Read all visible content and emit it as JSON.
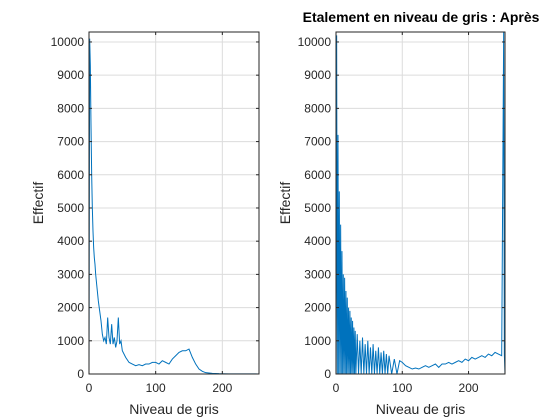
{
  "chart_data": [
    {
      "type": "line",
      "title": "",
      "xlabel": "Niveau de gris",
      "ylabel": "Effectif",
      "xlim": [
        0,
        255
      ],
      "ylim": [
        0,
        10300
      ],
      "xticks": [
        0,
        100,
        200
      ],
      "yticks": [
        0,
        1000,
        2000,
        3000,
        4000,
        5000,
        6000,
        7000,
        8000,
        9000,
        10000
      ],
      "grid": true,
      "series": [
        {
          "color": "#0072bd",
          "x": [
            0,
            1,
            2,
            3,
            4,
            5,
            6,
            7,
            8,
            9,
            10,
            12,
            14,
            16,
            18,
            20,
            22,
            24,
            26,
            28,
            30,
            32,
            34,
            36,
            38,
            40,
            42,
            44,
            46,
            48,
            50,
            55,
            60,
            65,
            70,
            75,
            80,
            85,
            90,
            95,
            100,
            105,
            110,
            115,
            120,
            125,
            130,
            135,
            140,
            145,
            150,
            155,
            160,
            165,
            170,
            175,
            180,
            185,
            190,
            195,
            200,
            210,
            220,
            230,
            240,
            250,
            255
          ],
          "y": [
            0,
            10100,
            9300,
            7500,
            6000,
            5000,
            4300,
            3800,
            3500,
            3300,
            3000,
            2600,
            2200,
            1900,
            1600,
            1200,
            1000,
            1100,
            900,
            1700,
            1100,
            900,
            1500,
            900,
            1100,
            800,
            1000,
            1700,
            900,
            1000,
            700,
            500,
            350,
            300,
            250,
            280,
            250,
            300,
            300,
            350,
            350,
            300,
            400,
            350,
            300,
            450,
            550,
            650,
            700,
            700,
            750,
            500,
            300,
            150,
            80,
            40,
            30,
            20,
            15,
            10,
            8,
            5,
            3,
            2,
            2,
            2,
            0
          ]
        }
      ]
    },
    {
      "type": "line",
      "title": "Etalement en niveau de gris : Après",
      "xlabel": "Niveau de gris",
      "ylabel": "Effectif",
      "xlim": [
        0,
        255
      ],
      "ylim": [
        0,
        10300
      ],
      "xticks": [
        0,
        100,
        200
      ],
      "yticks": [
        0,
        1000,
        2000,
        3000,
        4000,
        5000,
        6000,
        7000,
        8000,
        9000,
        10000
      ],
      "grid": true,
      "series": [
        {
          "color": "#0072bd",
          "x": [
            0,
            1,
            2,
            3,
            4,
            5,
            6,
            7,
            8,
            9,
            10,
            11,
            12,
            13,
            14,
            15,
            16,
            17,
            18,
            19,
            20,
            21,
            22,
            23,
            24,
            25,
            26,
            27,
            28,
            29,
            30,
            32,
            34,
            36,
            38,
            40,
            42,
            44,
            46,
            48,
            50,
            52,
            54,
            56,
            58,
            60,
            62,
            64,
            66,
            68,
            70,
            72,
            74,
            76,
            78,
            80,
            84,
            88,
            92,
            96,
            100,
            105,
            110,
            115,
            120,
            125,
            130,
            135,
            140,
            145,
            150,
            155,
            160,
            165,
            170,
            175,
            180,
            185,
            190,
            195,
            200,
            205,
            210,
            215,
            220,
            225,
            230,
            235,
            240,
            245,
            250,
            253,
            254,
            255
          ],
          "y": [
            0,
            10200,
            0,
            7200,
            0,
            5500,
            0,
            4500,
            0,
            3700,
            0,
            3000,
            0,
            2900,
            0,
            2500,
            0,
            2300,
            0,
            2000,
            0,
            1900,
            0,
            1700,
            0,
            1600,
            0,
            1400,
            0,
            1300,
            0,
            1200,
            0,
            1000,
            0,
            1100,
            0,
            900,
            0,
            1000,
            0,
            800,
            0,
            900,
            0,
            700,
            0,
            800,
            0,
            650,
            0,
            700,
            0,
            600,
            0,
            550,
            0,
            450,
            0,
            400,
            350,
            250,
            200,
            150,
            180,
            150,
            200,
            250,
            200,
            250,
            300,
            200,
            300,
            300,
            350,
            300,
            350,
            400,
            350,
            450,
            400,
            500,
            450,
            500,
            550,
            500,
            600,
            550,
            650,
            600,
            550,
            10300,
            600,
            0
          ]
        }
      ]
    }
  ]
}
